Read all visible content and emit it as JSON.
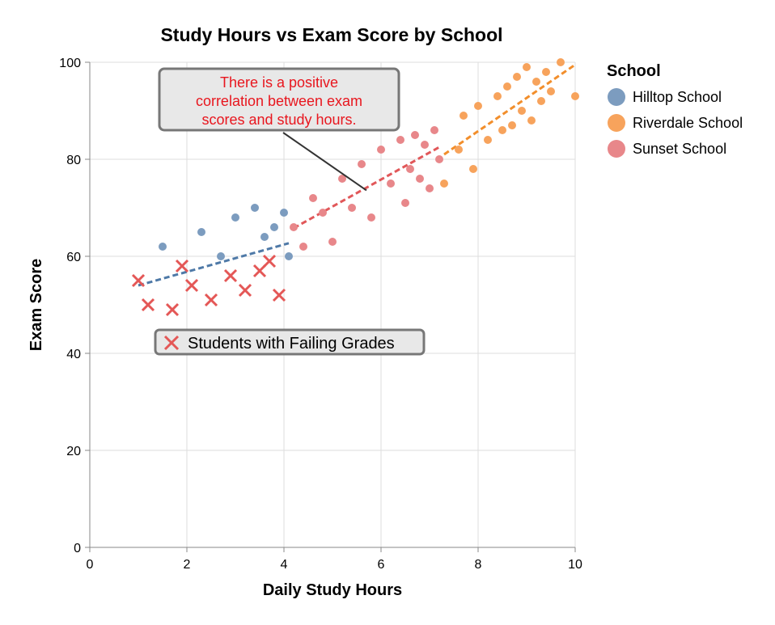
{
  "chart_data": {
    "type": "scatter",
    "title": "Study Hours vs Exam Score by School",
    "xlabel": "Daily Study Hours",
    "ylabel": "Exam Score",
    "xlim": [
      0,
      10
    ],
    "ylim": [
      0,
      100
    ],
    "x_ticks": [
      "0",
      "2",
      "4",
      "6",
      "8",
      "10"
    ],
    "y_ticks": [
      "0",
      "20",
      "40",
      "60",
      "80",
      "100"
    ],
    "grid": true,
    "legend": {
      "title": "School",
      "placement": "right",
      "items": [
        "Hilltop School",
        "Riverdale School",
        "Sunset School"
      ]
    },
    "series": [
      {
        "name": "Hilltop School",
        "color": "#7c9cbf",
        "trend_color": "#4e79a7",
        "trend": [
          [
            1.0,
            54
          ],
          [
            4.1,
            62.7
          ]
        ],
        "points": [
          [
            1.5,
            62
          ],
          [
            2.3,
            65
          ],
          [
            2.7,
            60
          ],
          [
            3.0,
            68
          ],
          [
            3.4,
            70
          ],
          [
            3.6,
            64
          ],
          [
            3.8,
            66
          ],
          [
            4.0,
            69
          ],
          [
            4.1,
            60
          ]
        ]
      },
      {
        "name": "Riverdale School",
        "color": "#f7a35c",
        "trend_color": "#f28e2b",
        "trend": [
          [
            7.3,
            81
          ],
          [
            10.0,
            99.5
          ]
        ],
        "points": [
          [
            7.3,
            75
          ],
          [
            7.6,
            82
          ],
          [
            7.7,
            89
          ],
          [
            7.9,
            78
          ],
          [
            8.0,
            91
          ],
          [
            8.2,
            84
          ],
          [
            8.4,
            93
          ],
          [
            8.5,
            86
          ],
          [
            8.6,
            95
          ],
          [
            8.7,
            87
          ],
          [
            8.8,
            97
          ],
          [
            8.9,
            90
          ],
          [
            9.0,
            99
          ],
          [
            9.1,
            88
          ],
          [
            9.2,
            96
          ],
          [
            9.3,
            92
          ],
          [
            9.4,
            98
          ],
          [
            9.5,
            94
          ],
          [
            9.7,
            100
          ],
          [
            10.0,
            93
          ]
        ]
      },
      {
        "name": "Sunset School",
        "color": "#e8878a",
        "trend_color": "#e15759",
        "trend": [
          [
            4.2,
            65.8
          ],
          [
            7.2,
            82.5
          ]
        ],
        "points": [
          [
            4.2,
            66
          ],
          [
            4.4,
            62
          ],
          [
            4.6,
            72
          ],
          [
            4.8,
            69
          ],
          [
            5.0,
            63
          ],
          [
            5.2,
            76
          ],
          [
            5.4,
            70
          ],
          [
            5.6,
            79
          ],
          [
            5.8,
            68
          ],
          [
            6.0,
            82
          ],
          [
            6.2,
            75
          ],
          [
            6.4,
            84
          ],
          [
            6.5,
            71
          ],
          [
            6.6,
            78
          ],
          [
            6.7,
            85
          ],
          [
            6.8,
            76
          ],
          [
            6.9,
            83
          ],
          [
            7.0,
            74
          ],
          [
            7.1,
            86
          ],
          [
            7.2,
            80
          ]
        ]
      }
    ],
    "failing_students": {
      "label": "Students with Failing Grades",
      "color": "#e45756",
      "points": [
        [
          1.0,
          55
        ],
        [
          1.2,
          50
        ],
        [
          1.7,
          49
        ],
        [
          1.9,
          58
        ],
        [
          2.1,
          54
        ],
        [
          2.5,
          51
        ],
        [
          2.9,
          56
        ],
        [
          3.2,
          53
        ],
        [
          3.5,
          57
        ],
        [
          3.7,
          59
        ],
        [
          3.9,
          52
        ]
      ]
    },
    "annotation": {
      "lines": [
        "There is a positive",
        "correlation between exam",
        "scores and study hours."
      ],
      "color": "#e8161e",
      "points_to": [
        5.7,
        73.6
      ]
    }
  }
}
